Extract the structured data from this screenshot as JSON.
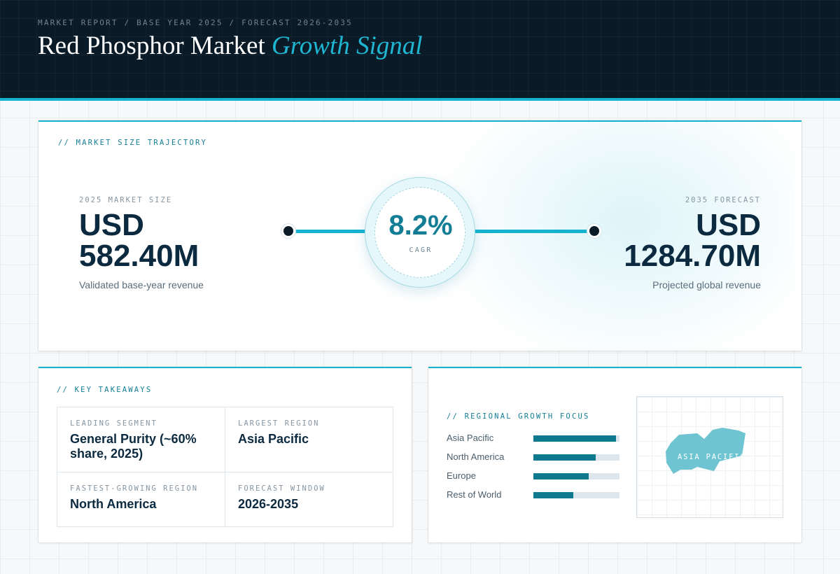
{
  "header": {
    "eyebrow": "MARKET REPORT / BASE YEAR 2025 / FORECAST 2026-2035",
    "title_main": "Red Phosphor Market",
    "title_accent": "Growth Signal"
  },
  "trajectory": {
    "label": "// MARKET SIZE TRAJECTORY",
    "start": {
      "kicker": "2025 MARKET SIZE",
      "value_line1": "USD",
      "value_line2": "582.40M",
      "sub": "Validated base-year revenue"
    },
    "cagr": {
      "value": "8.2%",
      "label": "CAGR"
    },
    "end": {
      "kicker": "2035 FORECAST",
      "value_line1": "USD",
      "value_line2": "1284.70M",
      "sub": "Projected global revenue"
    }
  },
  "takeaways": {
    "label": "// KEY TAKEAWAYS",
    "items": [
      {
        "key": "LEADING SEGMENT",
        "value": "General Purity (~60% share, 2025)"
      },
      {
        "key": "LARGEST REGION",
        "value": "Asia Pacific"
      },
      {
        "key": "FASTEST-GROWING REGION",
        "value": "North America"
      },
      {
        "key": "FORECAST WINDOW",
        "value": "2026-2035"
      }
    ]
  },
  "regional": {
    "label": "// REGIONAL GROWTH FOCUS",
    "bars": [
      {
        "name": "Asia Pacific",
        "level": 0.96
      },
      {
        "name": "North America",
        "level": 0.72
      },
      {
        "name": "Europe",
        "level": 0.64
      },
      {
        "name": "Rest of World",
        "level": 0.46
      }
    ],
    "map_label": "ASIA PACIFIC"
  },
  "colors": {
    "accent": "#15b3cf",
    "accent_dark": "#137d95",
    "navy": "#0a1a27",
    "text": "#0b2a3f"
  }
}
